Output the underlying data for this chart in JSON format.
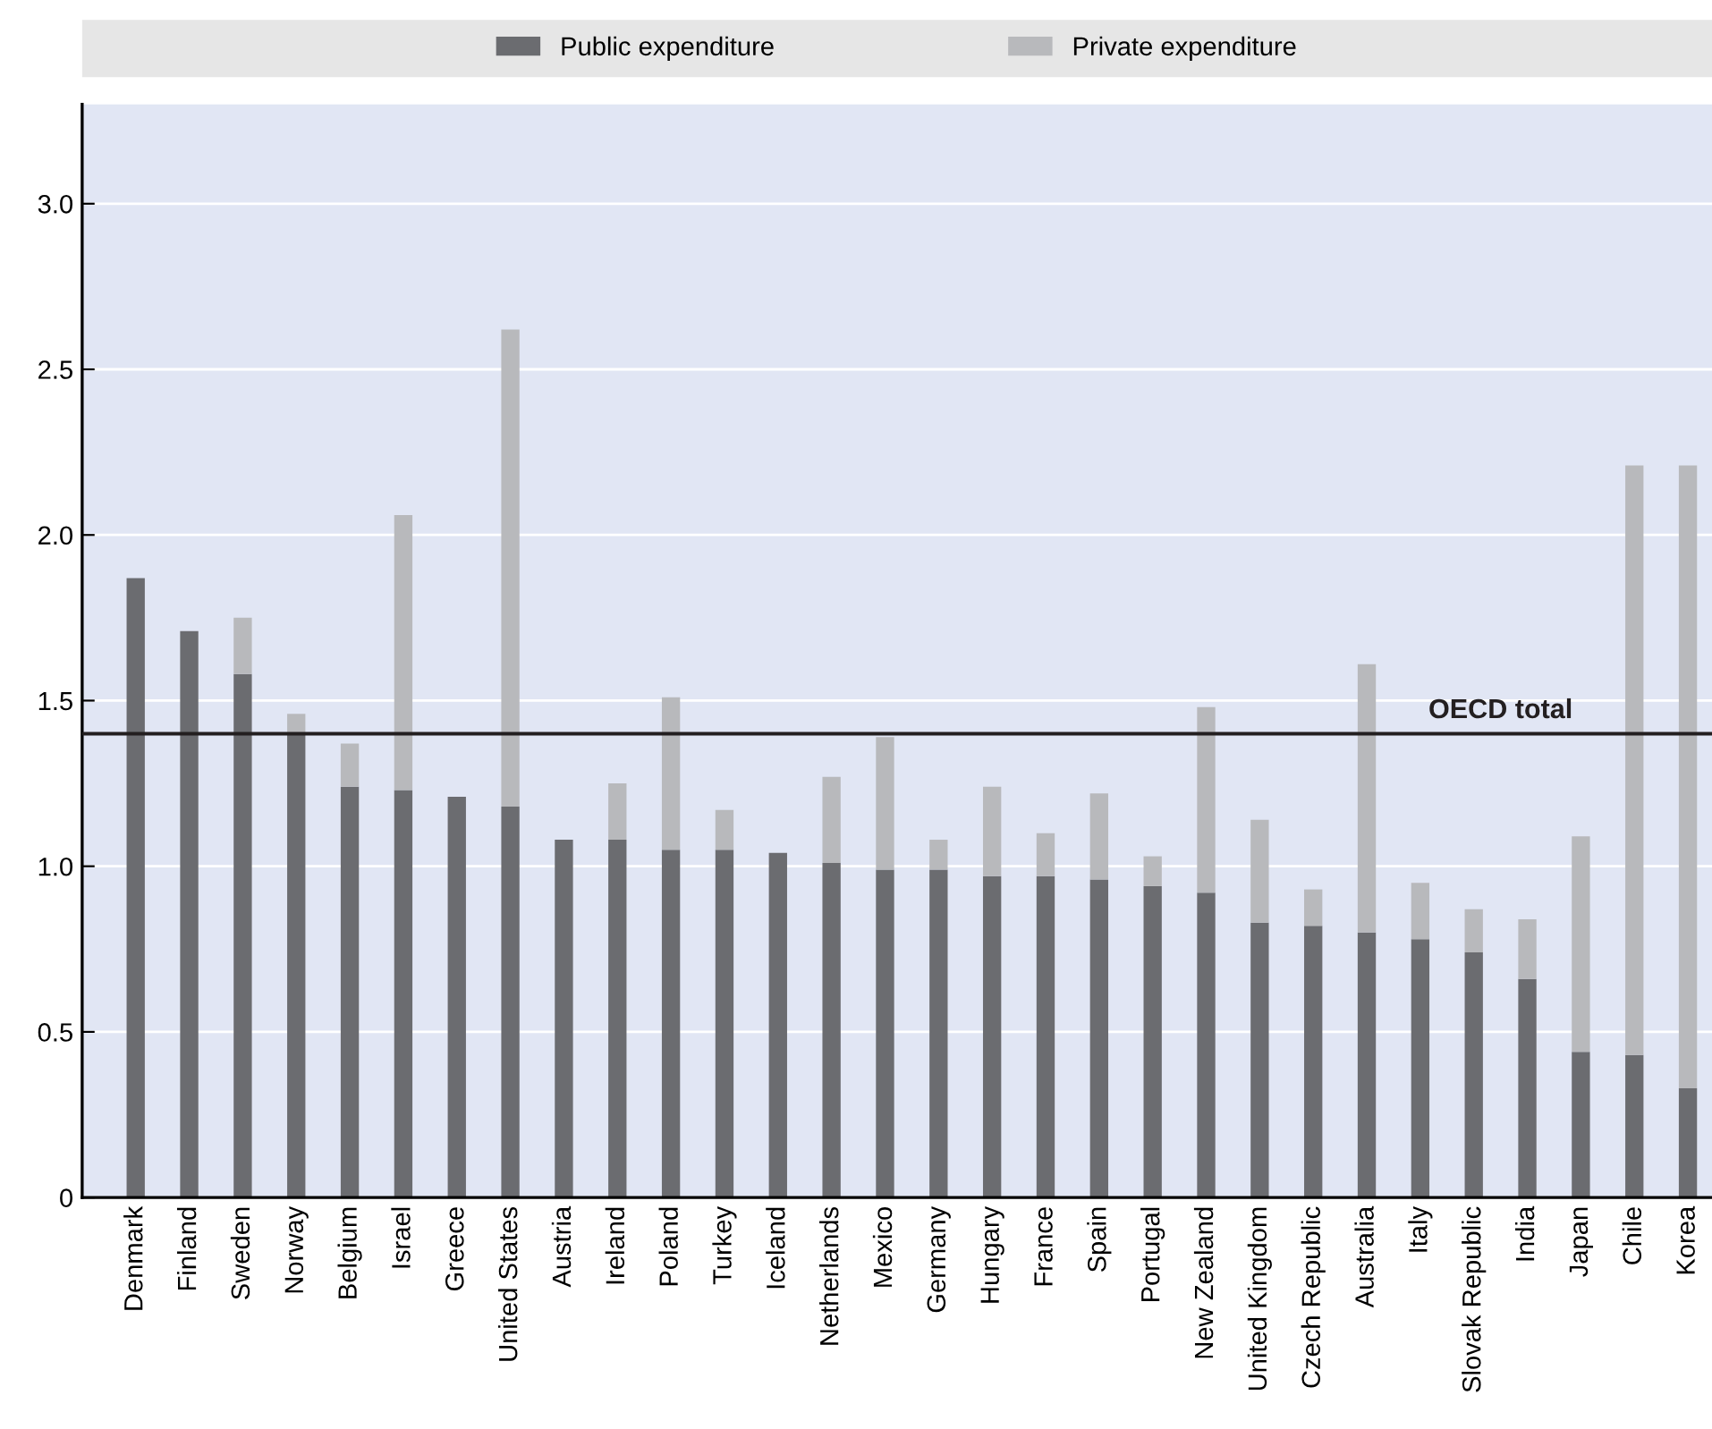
{
  "chart_data": {
    "type": "bar",
    "stacked": true,
    "legend": "top",
    "categories": [
      "Denmark",
      "Finland",
      "Sweden",
      "Norway",
      "Belgium",
      "Israel",
      "Greece",
      "United States",
      "Austria",
      "Ireland",
      "Poland",
      "Turkey",
      "Iceland",
      "Netherlands",
      "Mexico",
      "Germany",
      "Hungary",
      "France",
      "Spain",
      "Portugal",
      "New Zealand",
      "United Kingdom",
      "Czech Republic",
      "Australia",
      "Italy",
      "Slovak Republic",
      "India",
      "Japan",
      "Chile",
      "Korea"
    ],
    "series": [
      {
        "name": "Public expenditure",
        "color": "#6b6c70",
        "values": [
          1.87,
          1.71,
          1.58,
          1.4,
          1.24,
          1.23,
          1.21,
          1.18,
          1.08,
          1.08,
          1.05,
          1.05,
          1.04,
          1.01,
          0.99,
          0.99,
          0.97,
          0.97,
          0.96,
          0.94,
          0.92,
          0.83,
          0.82,
          0.8,
          0.78,
          0.74,
          0.66,
          0.44,
          0.43,
          0.33
        ]
      },
      {
        "name": "Private expenditure",
        "color": "#b8b9bc",
        "values": [
          0,
          0,
          0.17,
          0.06,
          0.13,
          0.83,
          0,
          1.44,
          0,
          0.17,
          0.46,
          0.12,
          0,
          0.26,
          0.4,
          0.09,
          0.27,
          0.13,
          0.26,
          0.09,
          0.56,
          0.31,
          0.11,
          0.81,
          0.17,
          0.13,
          0.18,
          0.65,
          1.78,
          1.88
        ]
      }
    ],
    "ylim": [
      0,
      3.3
    ],
    "yticks": [
      0,
      0.5,
      {
        "value": 1,
        "label": "1.0"
      },
      1.5,
      {
        "value": 2,
        "label": "2.0"
      },
      2.5,
      {
        "value": 3,
        "label": "3.0"
      }
    ],
    "grid": "y",
    "ref_lines": [
      {
        "axis": "y",
        "value": 1.4,
        "label": "OECD total",
        "color": "#231f20"
      }
    ]
  }
}
